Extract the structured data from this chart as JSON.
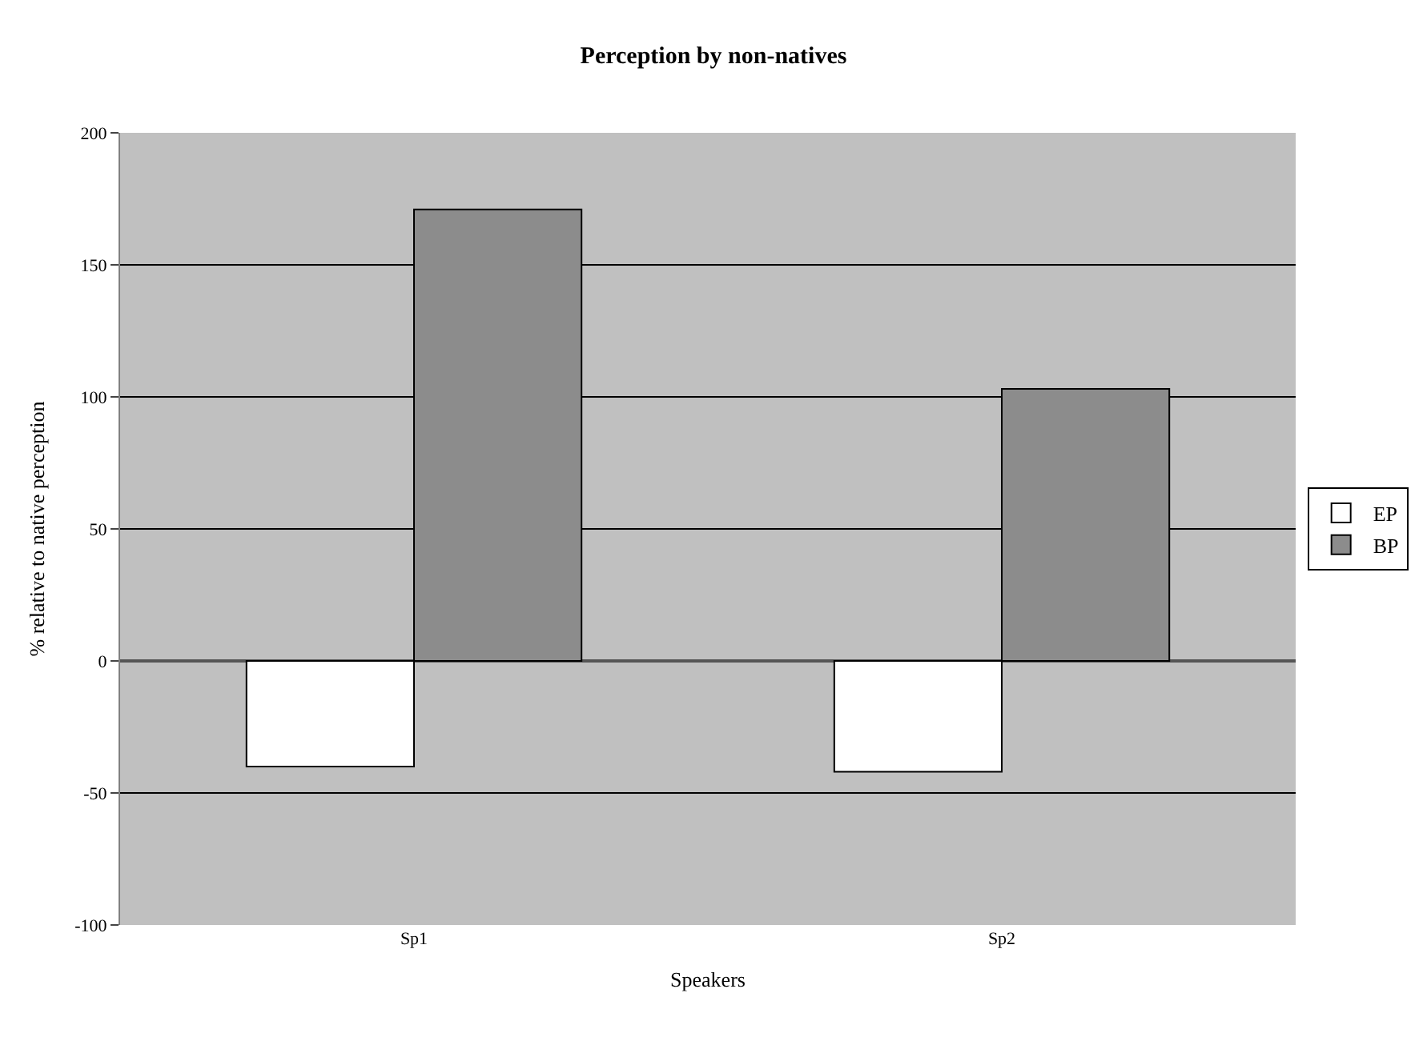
{
  "chart_data": {
    "type": "bar",
    "title": "Perception by non-natives",
    "xlabel": "Speakers",
    "ylabel": "% relative to native perception",
    "categories": [
      "Sp1",
      "Sp2"
    ],
    "series": [
      {
        "name": "EP",
        "color": "#ffffff",
        "values": [
          -40,
          -42
        ]
      },
      {
        "name": "BP",
        "color": "#8c8c8c",
        "values": [
          171,
          103
        ]
      }
    ],
    "ylim": [
      -100,
      200
    ],
    "yticks": [
      -100,
      -50,
      0,
      50,
      100,
      150,
      200
    ],
    "grid": "y",
    "legend": "right"
  }
}
